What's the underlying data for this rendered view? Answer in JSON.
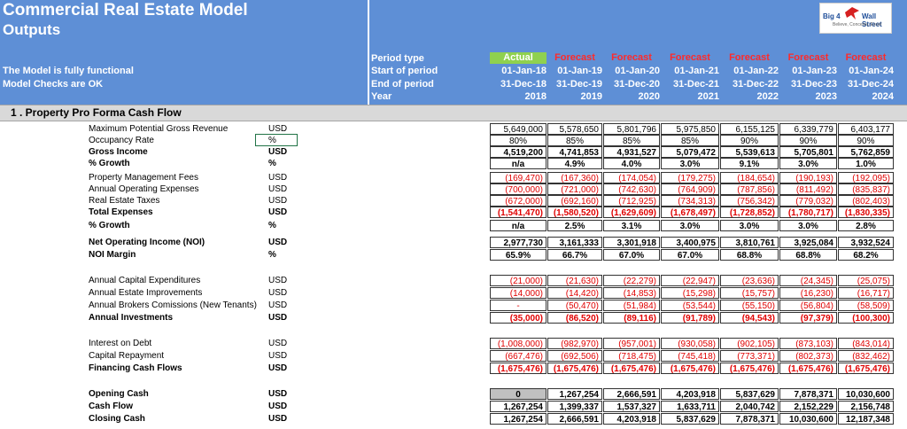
{
  "header": {
    "title": "Commercial Real Estate Model",
    "subtitle": "Outputs",
    "model_status": "The Model is fully functional",
    "checks_status": "Model Checks are OK",
    "logo": {
      "big": "Big 4",
      "wall": "Wall Street",
      "slogan": "Believe, Conceive, Excel"
    }
  },
  "period_labels": [
    "Period type",
    "Start of period",
    "End of period",
    "Year"
  ],
  "columns": [
    {
      "type": "Actual",
      "start": "01-Jan-18",
      "end": "31-Dec-18",
      "year": "2018"
    },
    {
      "type": "Forecast",
      "start": "01-Jan-19",
      "end": "31-Dec-19",
      "year": "2019"
    },
    {
      "type": "Forecast",
      "start": "01-Jan-20",
      "end": "31-Dec-20",
      "year": "2020"
    },
    {
      "type": "Forecast",
      "start": "01-Jan-21",
      "end": "31-Dec-21",
      "year": "2021"
    },
    {
      "type": "Forecast",
      "start": "01-Jan-22",
      "end": "31-Dec-22",
      "year": "2022"
    },
    {
      "type": "Forecast",
      "start": "01-Jan-23",
      "end": "31-Dec-23",
      "year": "2023"
    },
    {
      "type": "Forecast",
      "start": "01-Jan-24",
      "end": "31-Dec-24",
      "year": "2024"
    }
  ],
  "section": {
    "title": "1 . Property Pro Forma Cash Flow"
  },
  "rows": [
    {
      "label": "Maximum Potential Gross Revenue",
      "unit": "USD",
      "bold": false,
      "style": "normal",
      "values": [
        "5,649,000",
        "5,578,650",
        "5,801,796",
        "5,975,850",
        "6,155,125",
        "6,339,779",
        "6,403,177"
      ]
    },
    {
      "label": "Occupancy Rate",
      "unit": "%",
      "bold": false,
      "style": "center",
      "values": [
        "80%",
        "85%",
        "85%",
        "85%",
        "90%",
        "90%",
        "90%"
      ]
    },
    {
      "label": "Gross Income",
      "unit": "USD",
      "bold": true,
      "style": "normal",
      "values": [
        "4,519,200",
        "4,741,853",
        "4,931,527",
        "5,079,472",
        "5,539,613",
        "5,705,801",
        "5,762,859"
      ]
    },
    {
      "label": "% Growth",
      "unit": "%",
      "bold": true,
      "style": "center",
      "values": [
        "n/a",
        "4.9%",
        "4.0%",
        "3.0%",
        "9.1%",
        "3.0%",
        "1.0%"
      ]
    },
    {
      "label": "Property Management Fees",
      "unit": "USD",
      "bold": false,
      "style": "neg",
      "values": [
        "(169,470)",
        "(167,360)",
        "(174,054)",
        "(179,275)",
        "(184,654)",
        "(190,193)",
        "(192,095)"
      ]
    },
    {
      "label": "Annual Operating  Expenses",
      "unit": "USD",
      "bold": false,
      "style": "neg",
      "values": [
        "(700,000)",
        "(721,000)",
        "(742,630)",
        "(764,909)",
        "(787,856)",
        "(811,492)",
        "(835,837)"
      ]
    },
    {
      "label": "Real Estate Taxes",
      "unit": "USD",
      "bold": false,
      "style": "neg",
      "values": [
        "(672,000)",
        "(692,160)",
        "(712,925)",
        "(734,313)",
        "(756,342)",
        "(779,032)",
        "(802,403)"
      ]
    },
    {
      "label": "Total Expenses",
      "unit": "USD",
      "bold": true,
      "style": "neg",
      "values": [
        "(1,541,470)",
        "(1,580,520)",
        "(1,629,609)",
        "(1,678,497)",
        "(1,728,852)",
        "(1,780,717)",
        "(1,830,335)"
      ]
    },
    {
      "label": "% Growth",
      "unit": "%",
      "bold": true,
      "style": "center",
      "values": [
        "n/a",
        "2.5%",
        "3.1%",
        "3.0%",
        "3.0%",
        "3.0%",
        "2.8%"
      ]
    },
    {
      "label": "Net Operating Income (NOI)",
      "unit": "USD",
      "bold": true,
      "style": "normal",
      "values": [
        "2,977,730",
        "3,161,333",
        "3,301,918",
        "3,400,975",
        "3,810,761",
        "3,925,084",
        "3,932,524"
      ]
    },
    {
      "label": "NOI Margin",
      "unit": "%",
      "bold": true,
      "style": "center",
      "values": [
        "65.9%",
        "66.7%",
        "67.0%",
        "67.0%",
        "68.8%",
        "68.8%",
        "68.2%"
      ]
    },
    {
      "label": "Annual Capital Expenditures",
      "unit": "USD",
      "bold": false,
      "style": "neg",
      "values": [
        "(21,000)",
        "(21,630)",
        "(22,279)",
        "(22,947)",
        "(23,636)",
        "(24,345)",
        "(25,075)"
      ]
    },
    {
      "label": "Annual Estate Improvements",
      "unit": "USD",
      "bold": false,
      "style": "neg",
      "values": [
        "(14,000)",
        "(14,420)",
        "(14,853)",
        "(15,298)",
        "(15,757)",
        "(16,230)",
        "(16,717)"
      ]
    },
    {
      "label": "Annual Brokers Comissions (New Tenants)",
      "unit": "USD",
      "bold": false,
      "style": "neg",
      "values": [
        "-",
        "(50,470)",
        "(51,984)",
        "(53,544)",
        "(55,150)",
        "(56,804)",
        "(58,509)"
      ]
    },
    {
      "label": "Annual Investments",
      "unit": "USD",
      "bold": true,
      "style": "neg",
      "values": [
        "(35,000)",
        "(86,520)",
        "(89,116)",
        "(91,789)",
        "(94,543)",
        "(97,379)",
        "(100,300)"
      ]
    },
    {
      "label": "Interest on Debt",
      "unit": "USD",
      "bold": false,
      "style": "neg",
      "values": [
        "(1,008,000)",
        "(982,970)",
        "(957,001)",
        "(930,058)",
        "(902,105)",
        "(873,103)",
        "(843,014)"
      ]
    },
    {
      "label": "Capital Repayment",
      "unit": "USD",
      "bold": false,
      "style": "neg",
      "values": [
        "(667,476)",
        "(692,506)",
        "(718,475)",
        "(745,418)",
        "(773,371)",
        "(802,373)",
        "(832,462)"
      ]
    },
    {
      "label": "Financing Cash Flows",
      "unit": "USD",
      "bold": true,
      "style": "neg",
      "values": [
        "(1,675,476)",
        "(1,675,476)",
        "(1,675,476)",
        "(1,675,476)",
        "(1,675,476)",
        "(1,675,476)",
        "(1,675,476)"
      ]
    },
    {
      "label": "Opening Cash",
      "unit": "USD",
      "bold": true,
      "style": "normal",
      "values": [
        "0",
        "1,267,254",
        "2,666,591",
        "4,203,918",
        "5,837,629",
        "7,878,371",
        "10,030,600"
      ]
    },
    {
      "label": "Cash Flow",
      "unit": "USD",
      "bold": true,
      "style": "normal",
      "values": [
        "1,267,254",
        "1,399,337",
        "1,537,327",
        "1,633,711",
        "2,040,742",
        "2,152,229",
        "2,156,748"
      ]
    },
    {
      "label": "Closing Cash",
      "unit": "USD",
      "bold": true,
      "style": "normal",
      "values": [
        "1,267,254",
        "2,666,591",
        "4,203,918",
        "5,837,629",
        "7,878,371",
        "10,030,600",
        "12,187,348"
      ]
    }
  ]
}
